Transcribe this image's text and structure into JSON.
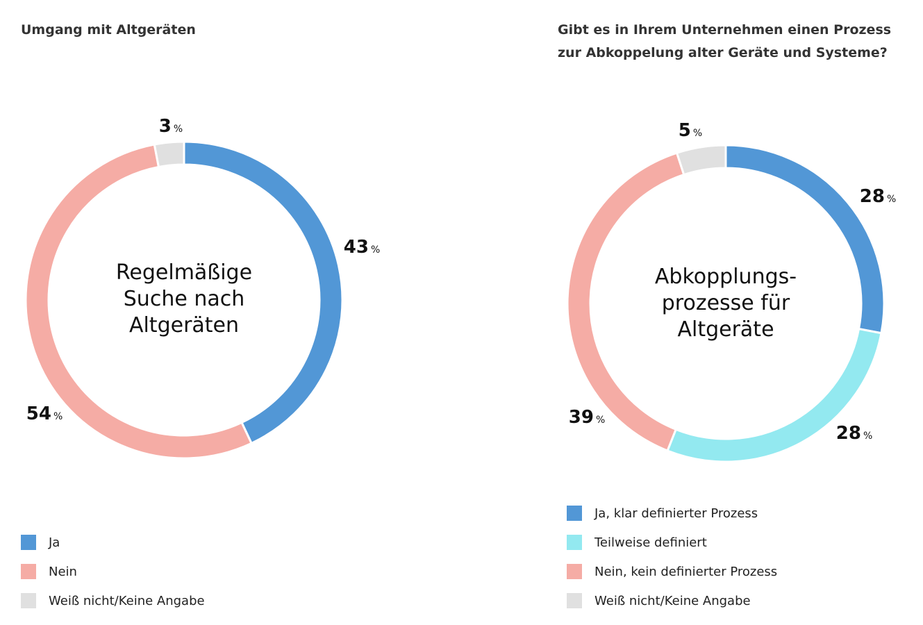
{
  "colors": {
    "ja": "#5297d6",
    "teilweise": "#93e9f0",
    "nein": "#f5aca5",
    "weiss_nicht": "#e0e0e0"
  },
  "chart_data": [
    {
      "type": "pie",
      "donut": true,
      "title": "Umgang mit Altgeräten",
      "center_text": [
        "Regelmäßige",
        "Suche nach",
        "Altgeräten"
      ],
      "unit": "%",
      "slices": [
        {
          "name": "Ja",
          "value": 43,
          "color": "#5297d6"
        },
        {
          "name": "Nein",
          "value": 54,
          "color": "#f5aca5"
        },
        {
          "name": "Weiß nicht/Keine Angabe",
          "value": 3,
          "color": "#e0e0e0"
        }
      ],
      "legend": "bottom-left"
    },
    {
      "type": "pie",
      "donut": true,
      "title": [
        "Gibt es in Ihrem Unternehmen einen Prozess",
        "zur Abkoppelung alter Geräte und Systeme?"
      ],
      "center_text": [
        "Abkopplungs-",
        "prozesse für",
        "Altgeräte"
      ],
      "unit": "%",
      "slices": [
        {
          "name": "Ja, klar definierter Prozess",
          "value": 28,
          "color": "#5297d6"
        },
        {
          "name": "Teilweise definiert",
          "value": 28,
          "color": "#93e9f0"
        },
        {
          "name": "Nein, kein definierter Prozess",
          "value": 39,
          "color": "#f5aca5"
        },
        {
          "name": "Weiß nicht/Keine Angabe",
          "value": 5,
          "color": "#e0e0e0"
        }
      ],
      "legend": "bottom-left"
    }
  ]
}
